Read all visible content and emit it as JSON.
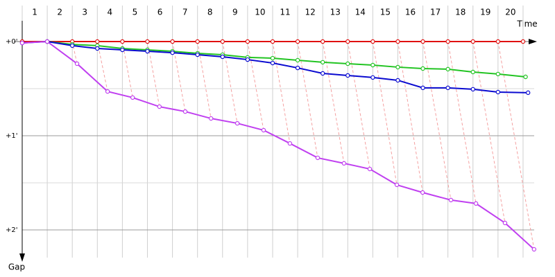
{
  "chart_data": {
    "type": "line",
    "x_label": "Time",
    "y_label": "Gap",
    "categories": [
      "1",
      "2",
      "3",
      "4",
      "5",
      "6",
      "7",
      "8",
      "9",
      "10",
      "11",
      "12",
      "13",
      "14",
      "15",
      "16",
      "17",
      "18",
      "19",
      "20"
    ],
    "xlim": [
      0,
      20.5
    ],
    "xticks": [
      0,
      1,
      2,
      3,
      4,
      5,
      6,
      7,
      8,
      9,
      10,
      11,
      12,
      13,
      14,
      15,
      16,
      17,
      18,
      19,
      20
    ],
    "ylim": [
      0,
      139
    ],
    "yticks": [
      {
        "value": 0,
        "label": "+0'"
      },
      {
        "value": 60,
        "label": "+1'"
      },
      {
        "value": 120,
        "label": "+2'"
      }
    ],
    "minor_yticks": [
      30,
      90
    ],
    "grid": true,
    "connector_color": "#f4a0a0",
    "series": [
      {
        "color": "#e01010",
        "x": [
          0,
          1,
          2,
          3,
          4,
          5,
          6,
          7,
          8,
          9,
          10,
          11,
          12,
          13,
          14,
          15,
          16,
          17,
          18,
          19,
          20
        ],
        "values": [
          0,
          0,
          0,
          0,
          0,
          0,
          0,
          0,
          0,
          0,
          0,
          0,
          0,
          0,
          0,
          0,
          0,
          0,
          0,
          0,
          0
        ]
      },
      {
        "color": "#22c422",
        "x": [
          1,
          2,
          3,
          4,
          5,
          6,
          7,
          8,
          9,
          10,
          11,
          12,
          13,
          14,
          15,
          16,
          17,
          18,
          19,
          20.1
        ],
        "values": [
          0,
          1.8,
          2.6,
          4.4,
          5.3,
          6.2,
          7.5,
          8.4,
          10.1,
          10.6,
          11.9,
          13.2,
          14.1,
          15,
          16.3,
          17.2,
          17.6,
          19.4,
          20.7,
          22.5
        ]
      },
      {
        "color": "#0a0ad0",
        "x": [
          0,
          1,
          2,
          3,
          4,
          5,
          6,
          7,
          8,
          9,
          10,
          11,
          12,
          13,
          14,
          15,
          16,
          17,
          18,
          19,
          20.2
        ],
        "values": [
          0.9,
          0,
          2.6,
          4.4,
          5.3,
          6.2,
          7.1,
          8.4,
          9.7,
          11.5,
          13.7,
          16.8,
          20.3,
          21.6,
          22.9,
          24.7,
          29.5,
          29.5,
          30.4,
          32.2,
          32.6
        ]
      },
      {
        "color": "#c040f0",
        "x": [
          0,
          1,
          2.19,
          3.41,
          4.41,
          5.48,
          6.51,
          7.54,
          8.59,
          9.64,
          10.69,
          11.8,
          12.85,
          13.88,
          14.96,
          15.99,
          17.12,
          18.12,
          19.28,
          20.44
        ],
        "values": [
          0.9,
          0,
          14.1,
          31.8,
          35.7,
          41.5,
          44.6,
          49,
          52.1,
          56.5,
          64.9,
          74.1,
          77.6,
          81.2,
          91.3,
          96.2,
          101,
          103.2,
          115.6,
          132.4
        ]
      }
    ]
  }
}
